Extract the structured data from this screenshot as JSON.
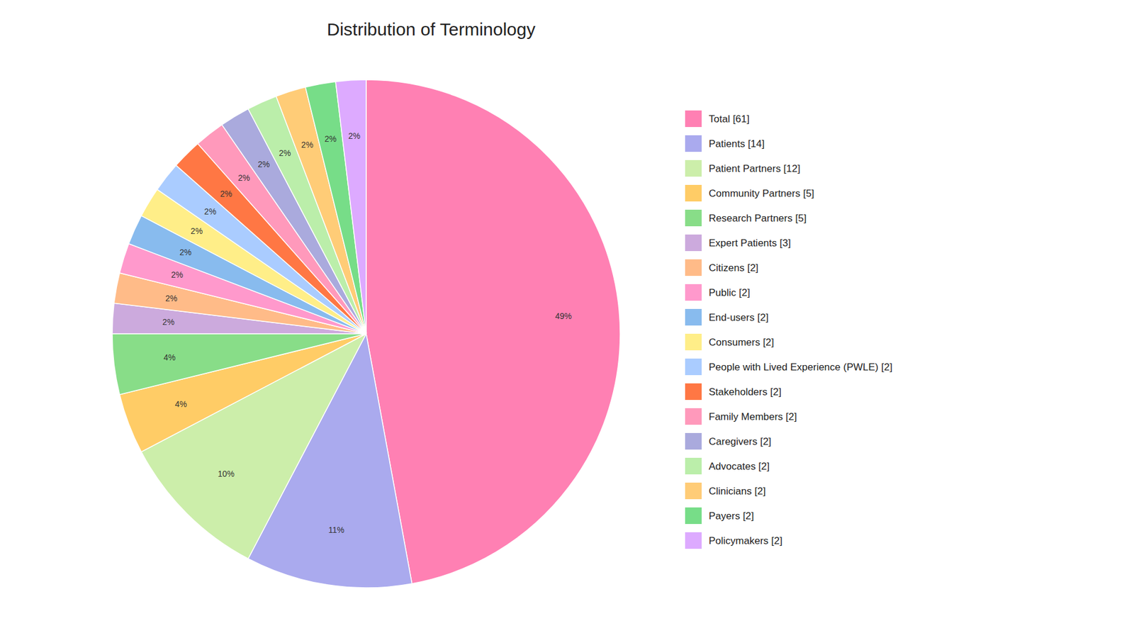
{
  "chart_data": {
    "type": "pie",
    "title": "Distribution of Terminology",
    "categories": [
      "Total [61]",
      "Patients [14]",
      "Patient Partners [12]",
      "Community Partners [5]",
      "Research Partners [5]",
      "Expert Patients [3]",
      "Citizens [2]",
      "Public [2]",
      "End-users [2]",
      "Consumers [2]",
      "People with Lived Experience (PWLE) [2]",
      "Stakeholders [2]",
      "Family Members [2]",
      "Caregivers [2]",
      "Advocates [2]",
      "Clinicians [2]",
      "Payers [2]",
      "Policymakers [2]"
    ],
    "values": [
      49,
      11,
      10,
      4,
      4,
      2,
      2,
      2,
      2,
      2,
      2,
      2,
      2,
      2,
      2,
      2,
      2,
      2
    ],
    "value_labels": [
      "49%",
      "11%",
      "10%",
      "4%",
      "4%",
      "2%",
      "2%",
      "2%",
      "2%",
      "2%",
      "2%",
      "2%",
      "2%",
      "2%",
      "2%",
      "2%",
      "2%",
      "2%"
    ],
    "colors": [
      "#FF80B3",
      "#AAAAEE",
      "#CCEEAA",
      "#FFCC66",
      "#88DD88",
      "#CCAADD",
      "#FFBB88",
      "#FF99CC",
      "#88BBEE",
      "#FFEE88",
      "#AACCFF",
      "#FF7744",
      "#FF99BB",
      "#AAAADD",
      "#BBEEAA",
      "#FFCC77",
      "#77DD88",
      "#DDAAFF"
    ],
    "data_labels": true,
    "legend": "right"
  }
}
